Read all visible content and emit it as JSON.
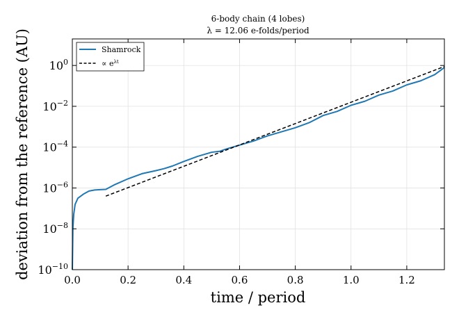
{
  "chart_data": {
    "type": "line",
    "title": "6-body chain (4 lobes)",
    "subtitle": "λ = 12.06 e-folds/period",
    "xlabel": "time / period",
    "ylabel": "deviation from the reference (AU)",
    "xlim": [
      0.0,
      1.335
    ],
    "ylim_log10": [
      -10,
      1.3
    ],
    "yscale": "log",
    "grid": true,
    "legend_position": "top-left",
    "x_ticks": [
      {
        "value": 0.0,
        "label": "0.0"
      },
      {
        "value": 0.2,
        "label": "0.2"
      },
      {
        "value": 0.4,
        "label": "0.4"
      },
      {
        "value": 0.6,
        "label": "0.6"
      },
      {
        "value": 0.8,
        "label": "0.8"
      },
      {
        "value": 1.0,
        "label": "1.0"
      },
      {
        "value": 1.2,
        "label": "1.2"
      }
    ],
    "y_ticks": [
      {
        "value": -10,
        "base": "10",
        "exp": "−10"
      },
      {
        "value": -8,
        "base": "10",
        "exp": "−8"
      },
      {
        "value": -6,
        "base": "10",
        "exp": "−6"
      },
      {
        "value": -4,
        "base": "10",
        "exp": "−4"
      },
      {
        "value": -2,
        "base": "10",
        "exp": "−2"
      },
      {
        "value": 0,
        "base": "10",
        "exp": "0"
      }
    ],
    "series": [
      {
        "name": "Shamrock",
        "color": "#1f77b4",
        "style": "solid",
        "x": [
          0.0,
          0.002,
          0.005,
          0.01,
          0.02,
          0.04,
          0.06,
          0.08,
          0.1,
          0.12,
          0.15,
          0.2,
          0.25,
          0.3,
          0.33,
          0.36,
          0.4,
          0.45,
          0.5,
          0.53,
          0.55,
          0.6,
          0.65,
          0.7,
          0.75,
          0.8,
          0.85,
          0.9,
          0.95,
          1.0,
          1.05,
          1.1,
          1.15,
          1.2,
          1.25,
          1.3,
          1.335
        ],
        "log10_y": [
          -10.0,
          -8.0,
          -7.3,
          -6.8,
          -6.5,
          -6.3,
          -6.15,
          -6.1,
          -6.08,
          -6.07,
          -5.85,
          -5.55,
          -5.3,
          -5.15,
          -5.05,
          -4.92,
          -4.7,
          -4.45,
          -4.25,
          -4.2,
          -4.1,
          -3.9,
          -3.7,
          -3.45,
          -3.25,
          -3.05,
          -2.8,
          -2.45,
          -2.25,
          -1.95,
          -1.75,
          -1.45,
          -1.25,
          -0.95,
          -0.75,
          -0.45,
          -0.1
        ]
      },
      {
        "name": "∝ e^{λt}",
        "color": "#000000",
        "style": "dashed",
        "x": [
          0.12,
          1.335
        ],
        "log10_y": [
          -6.4,
          -0.05
        ]
      }
    ],
    "legend": [
      {
        "label": "Shamrock",
        "style": "solid",
        "color": "#1f77b4"
      },
      {
        "label_prefix": "∝ e",
        "label_sup": "λt",
        "style": "dashed",
        "color": "#000000"
      }
    ]
  }
}
